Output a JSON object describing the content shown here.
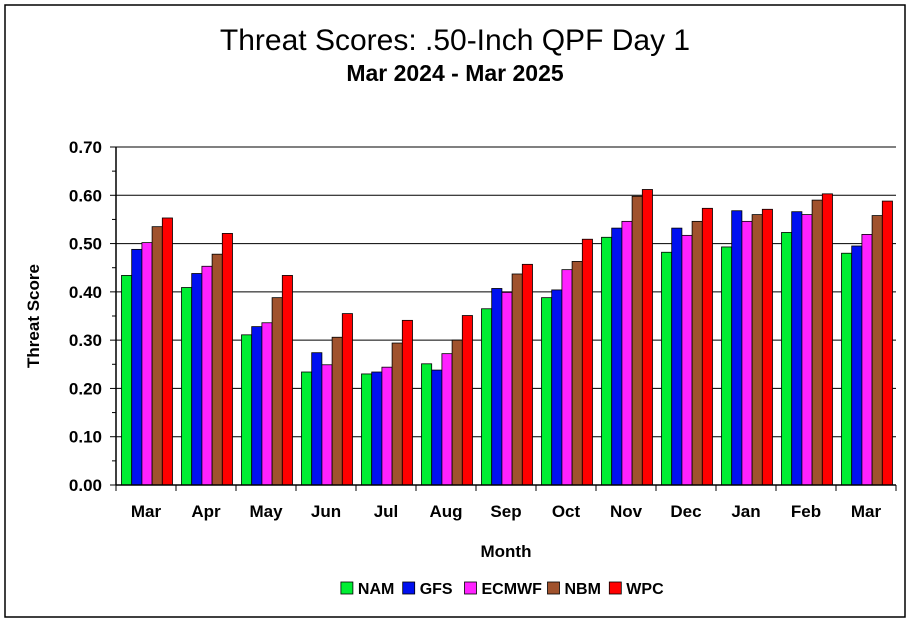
{
  "chart_data": {
    "type": "bar",
    "title": "Threat Scores:  .50-Inch QPF Day 1",
    "subtitle": "Mar 2024 - Mar 2025",
    "xlabel": "Month",
    "ylabel": "Threat Score",
    "ylim": [
      0,
      0.7
    ],
    "yticks": [
      "0.00",
      "0.10",
      "0.20",
      "0.30",
      "0.40",
      "0.50",
      "0.60",
      "0.70"
    ],
    "grid": true,
    "legend_position": "bottom",
    "categories": [
      "Mar",
      "Apr",
      "May",
      "Jun",
      "Jul",
      "Aug",
      "Sep",
      "Oct",
      "Nov",
      "Dec",
      "Jan",
      "Feb",
      "Mar"
    ],
    "series": [
      {
        "name": "NAM",
        "color": "#00ee33",
        "values": [
          0.434,
          0.409,
          0.311,
          0.234,
          0.23,
          0.251,
          0.365,
          0.388,
          0.513,
          0.482,
          0.493,
          0.523,
          0.48
        ]
      },
      {
        "name": "GFS",
        "color": "#0010f0",
        "values": [
          0.488,
          0.438,
          0.328,
          0.274,
          0.234,
          0.238,
          0.407,
          0.404,
          0.532,
          0.532,
          0.568,
          0.566,
          0.495
        ]
      },
      {
        "name": "ECMWF",
        "color": "#ff22ff",
        "values": [
          0.502,
          0.453,
          0.336,
          0.249,
          0.244,
          0.272,
          0.399,
          0.446,
          0.546,
          0.517,
          0.546,
          0.56,
          0.519
        ]
      },
      {
        "name": "NBM",
        "color": "#a0522d",
        "values": [
          0.535,
          0.478,
          0.388,
          0.306,
          0.294,
          0.3,
          0.437,
          0.463,
          0.598,
          0.546,
          0.56,
          0.59,
          0.558
        ]
      },
      {
        "name": "WPC",
        "color": "#ff0000",
        "values": [
          0.553,
          0.521,
          0.434,
          0.355,
          0.341,
          0.351,
          0.457,
          0.509,
          0.612,
          0.573,
          0.571,
          0.603,
          0.588
        ]
      }
    ]
  }
}
